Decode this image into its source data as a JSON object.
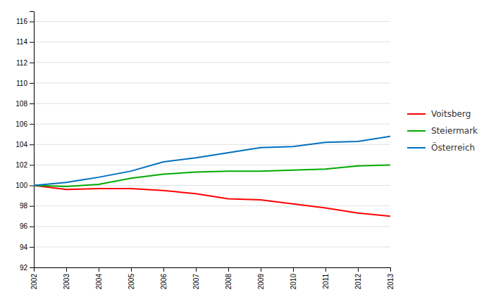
{
  "chart_data": {
    "type": "line",
    "x": [
      2002,
      2003,
      2004,
      2005,
      2006,
      2007,
      2008,
      2009,
      2010,
      2011,
      2012,
      2013
    ],
    "series": [
      {
        "name": "Voitsberg",
        "color": "#ff0000",
        "values": [
          100.0,
          99.6,
          99.7,
          99.7,
          99.5,
          99.2,
          98.7,
          98.6,
          98.2,
          97.8,
          97.3,
          97.0
        ]
      },
      {
        "name": "Steiermark",
        "color": "#00aa00",
        "values": [
          100.0,
          99.9,
          100.1,
          100.7,
          101.1,
          101.3,
          101.4,
          101.4,
          101.5,
          101.6,
          101.9,
          102.0
        ]
      },
      {
        "name": "Österreich",
        "color": "#0070c0",
        "values": [
          100.0,
          100.3,
          100.8,
          101.4,
          102.3,
          102.7,
          103.2,
          103.7,
          103.8,
          104.2,
          104.3,
          104.8
        ]
      }
    ],
    "xlim": [
      2002,
      2013
    ],
    "xticks": [
      2002,
      2003,
      2004,
      2005,
      2006,
      2007,
      2008,
      2009,
      2010,
      2011,
      2012,
      2013
    ],
    "ylim": [
      92,
      117
    ],
    "yticks": [
      92,
      94,
      96,
      98,
      100,
      102,
      104,
      106,
      108,
      110,
      112,
      114,
      116
    ],
    "grid": true,
    "legend": "right"
  }
}
